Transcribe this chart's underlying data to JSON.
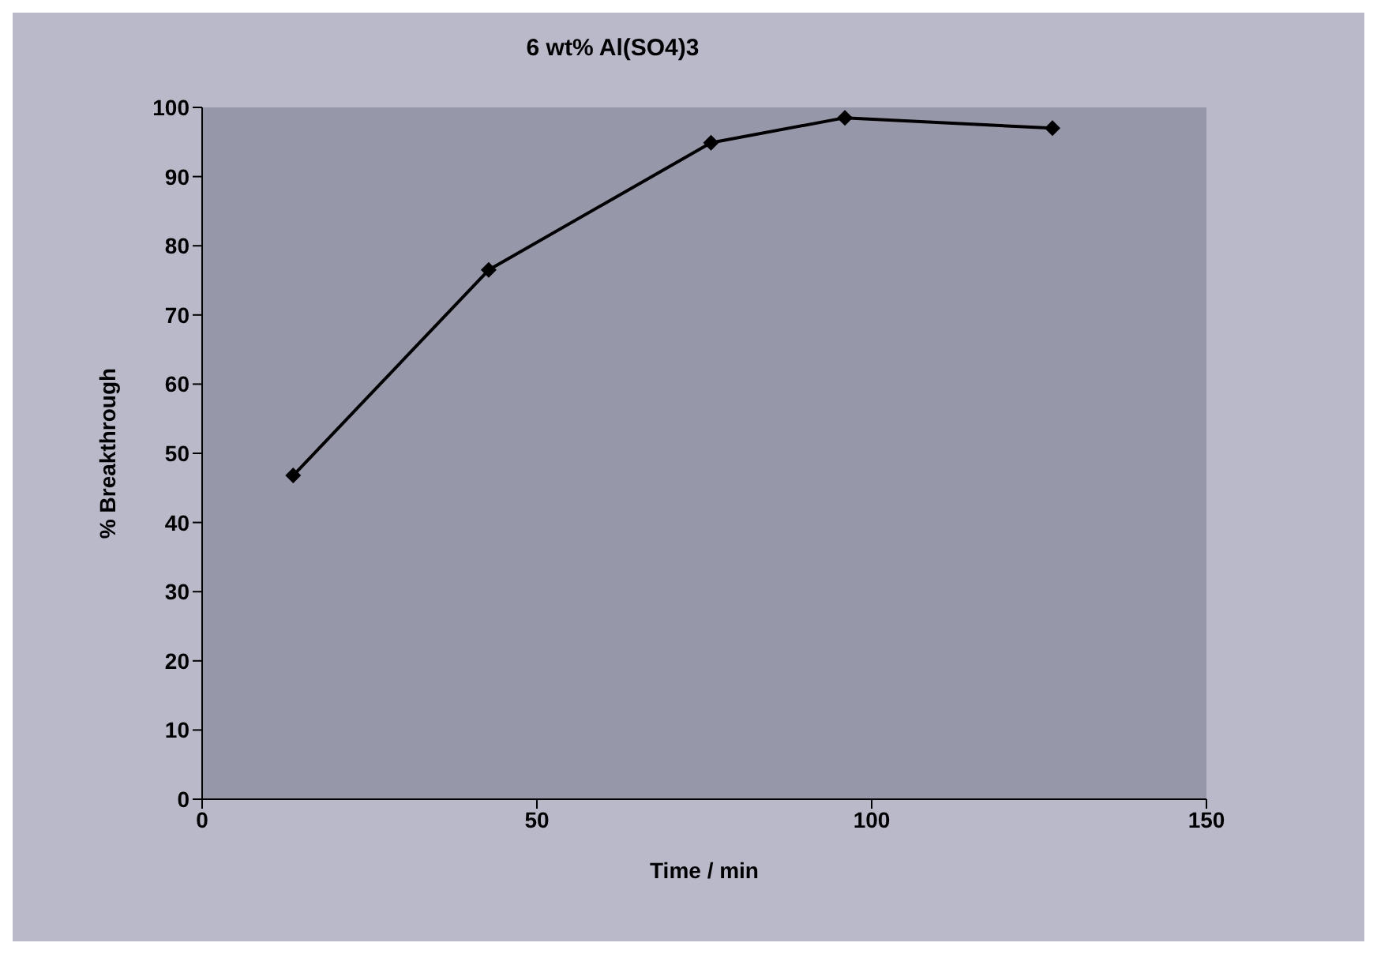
{
  "chart_data": {
    "type": "line",
    "title": "6 wt% Al(SO4)3",
    "xlabel": "Time / min",
    "ylabel": "% Breakthrough",
    "x": [
      13.6,
      42.8,
      76,
      96,
      127
    ],
    "series": [
      {
        "color": "#000000",
        "values": [
          46.8,
          76.5,
          94.9,
          98.5,
          97
        ]
      }
    ],
    "xlim": [
      0,
      150
    ],
    "xticks": [
      0,
      50,
      100,
      150
    ],
    "ylim": [
      0,
      100
    ],
    "yticks": [
      0,
      10,
      20,
      30,
      40,
      50,
      60,
      70,
      80,
      90,
      100
    ],
    "grid": false,
    "legend": false,
    "marker": "diamond",
    "line_style": "solid"
  }
}
